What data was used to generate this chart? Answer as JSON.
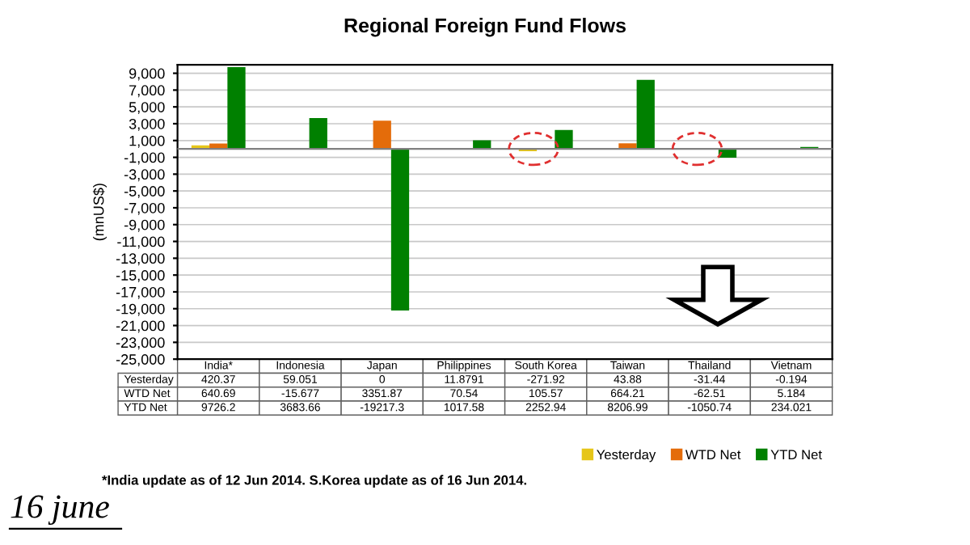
{
  "chart_data": {
    "type": "bar",
    "title": "Regional Foreign Fund Flows",
    "ylabel": "(mnUS$)",
    "categories": [
      "India*",
      "Indonesia",
      "Japan",
      "Philippines",
      "South Korea",
      "Taiwan",
      "Thailand",
      "Vietnam"
    ],
    "series": [
      {
        "name": "Yesterday",
        "color": "#e6c619",
        "values": [
          420.37,
          59.051,
          0,
          11.8791,
          -271.92,
          43.88,
          -31.44,
          -0.194
        ]
      },
      {
        "name": "WTD Net",
        "color": "#e46c0a",
        "values": [
          640.69,
          -15.677,
          3351.87,
          70.54,
          105.57,
          664.21,
          -62.51,
          5.184
        ]
      },
      {
        "name": "YTD Net",
        "color": "#008000",
        "values": [
          9726.2,
          3683.66,
          -19217.3,
          1017.58,
          2252.94,
          8206.99,
          -1050.74,
          234.021
        ]
      }
    ],
    "ylim": [
      -25000,
      10000
    ],
    "yticks": [
      {
        "value": -25000,
        "label": "-25,000"
      },
      {
        "value": -23000,
        "label": "-23,000"
      },
      {
        "value": -21000,
        "label": "-21,000"
      },
      {
        "value": -19000,
        "label": "-19,000"
      },
      {
        "value": -17000,
        "label": "-17,000"
      },
      {
        "value": -15000,
        "label": "-15,000"
      },
      {
        "value": -13000,
        "label": "-13,000"
      },
      {
        "value": -11000,
        "label": "-11,000"
      },
      {
        "value": -9000,
        "label": "-9,000"
      },
      {
        "value": -7000,
        "label": "-7,000"
      },
      {
        "value": -5000,
        "label": "-5,000"
      },
      {
        "value": -3000,
        "label": "-3,000"
      },
      {
        "value": -1000,
        "label": "-1,000"
      },
      {
        "value": 1000,
        "label": "1,000"
      },
      {
        "value": 3000,
        "label": "3,000"
      },
      {
        "value": 5000,
        "label": "5,000"
      },
      {
        "value": 7000,
        "label": "7,000"
      },
      {
        "value": 9000,
        "label": "9,000"
      }
    ],
    "grid": "y",
    "legend": "bottom right",
    "data_labels": true,
    "annotations": [
      "*India update as of 12 Jun 2014. S.Korea update as of 16 Jun 2014.",
      "16 june"
    ]
  }
}
